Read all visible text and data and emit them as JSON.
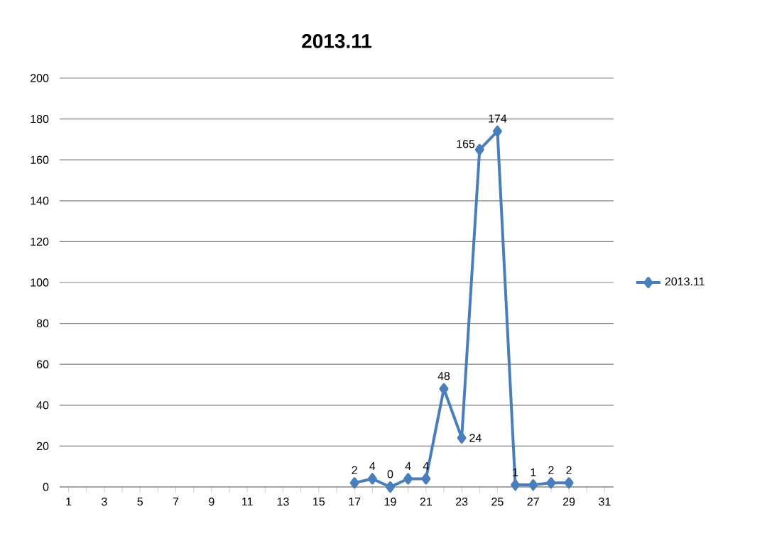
{
  "chart_data": {
    "type": "line",
    "title": "2013.11",
    "categories": [
      "1",
      null,
      "3",
      null,
      "5",
      null,
      "7",
      null,
      "9",
      null,
      "11",
      null,
      "13",
      null,
      "15",
      null,
      "17",
      null,
      "19",
      null,
      "21",
      null,
      "23",
      null,
      "25",
      null,
      "27",
      null,
      "29",
      null,
      "31"
    ],
    "series": [
      {
        "name": "2013.11",
        "color": "#4a7ebb",
        "values": [
          null,
          null,
          null,
          null,
          null,
          null,
          null,
          null,
          null,
          null,
          null,
          null,
          null,
          null,
          null,
          null,
          2,
          4,
          0,
          4,
          4,
          48,
          24,
          165,
          174,
          1,
          1,
          2,
          2,
          null,
          null
        ]
      }
    ],
    "ylim": [
      0,
      200
    ],
    "yticks": [
      0,
      20,
      40,
      60,
      80,
      100,
      120,
      140,
      160,
      180,
      200
    ],
    "grid": "y",
    "legend": "right",
    "marker": "diamond",
    "data_labels": true
  }
}
